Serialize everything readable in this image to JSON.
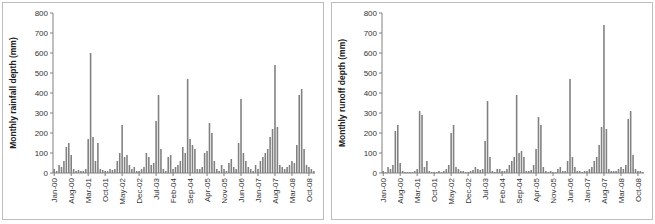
{
  "chart_data": [
    {
      "type": "bar",
      "y_label": "Monthly rainfall depth (mm)",
      "color": "#808080",
      "grid": false,
      "ylim": [
        0,
        800
      ],
      "yticks": [
        0,
        100,
        200,
        300,
        400,
        500,
        600,
        700,
        800
      ],
      "categories": [
        "Jan-00",
        null,
        null,
        null,
        null,
        null,
        null,
        "Aug-00",
        null,
        null,
        null,
        null,
        null,
        null,
        "Mar-01",
        null,
        null,
        null,
        null,
        null,
        null,
        "Oct-01",
        null,
        null,
        null,
        null,
        null,
        null,
        "May-02",
        null,
        null,
        null,
        null,
        null,
        null,
        "Dec-02",
        null,
        null,
        null,
        null,
        null,
        null,
        "Jul-03",
        null,
        null,
        null,
        null,
        null,
        null,
        "Feb-04",
        null,
        null,
        null,
        null,
        null,
        null,
        "Sep-04",
        null,
        null,
        null,
        null,
        null,
        null,
        "Apr-05",
        null,
        null,
        null,
        null,
        null,
        null,
        "Nov-05",
        null,
        null,
        null,
        null,
        null,
        null,
        "Jun-06",
        null,
        null,
        null,
        null,
        null,
        null,
        "Jan-07",
        null,
        null,
        null,
        null,
        null,
        null,
        "Aug-07",
        null,
        null,
        null,
        null,
        null,
        null,
        "Mar-08",
        null,
        null,
        null,
        null,
        null,
        null,
        "Oct-08",
        null,
        null
      ],
      "values": [
        20,
        10,
        40,
        30,
        60,
        130,
        150,
        90,
        20,
        10,
        15,
        10,
        10,
        20,
        170,
        600,
        180,
        60,
        150,
        20,
        15,
        10,
        10,
        20,
        15,
        20,
        60,
        100,
        240,
        80,
        90,
        40,
        20,
        30,
        10,
        10,
        20,
        30,
        100,
        80,
        40,
        50,
        260,
        390,
        120,
        20,
        10,
        80,
        90,
        20,
        30,
        40,
        60,
        130,
        100,
        470,
        170,
        140,
        120,
        20,
        20,
        30,
        100,
        110,
        250,
        200,
        60,
        20,
        10,
        40,
        20,
        10,
        50,
        70,
        30,
        20,
        150,
        370,
        100,
        60,
        30,
        20,
        10,
        40,
        20,
        60,
        80,
        100,
        120,
        180,
        220,
        540,
        230,
        40,
        30,
        20,
        30,
        40,
        60,
        50,
        140,
        390,
        420,
        120,
        40,
        30,
        20,
        10
      ]
    },
    {
      "type": "bar",
      "y_label": "Monthly runoff depth (mm)",
      "color": "#808080",
      "grid": false,
      "ylim": [
        0,
        800
      ],
      "yticks": [
        0,
        100,
        200,
        300,
        400,
        500,
        600,
        700,
        800
      ],
      "categories": [
        "Jan-00",
        null,
        null,
        null,
        null,
        null,
        null,
        "Aug-00",
        null,
        null,
        null,
        null,
        null,
        null,
        "Mar-01",
        null,
        null,
        null,
        null,
        null,
        null,
        "Oct-01",
        null,
        null,
        null,
        null,
        null,
        null,
        "May-02",
        null,
        null,
        null,
        null,
        null,
        null,
        "Dec-02",
        null,
        null,
        null,
        null,
        null,
        null,
        "Jul-03",
        null,
        null,
        null,
        null,
        null,
        null,
        "Feb-04",
        null,
        null,
        null,
        null,
        null,
        null,
        "Sep-04",
        null,
        null,
        null,
        null,
        null,
        null,
        "Apr-05",
        null,
        null,
        null,
        null,
        null,
        null,
        "Nov-05",
        null,
        null,
        null,
        null,
        null,
        null,
        "Jun-06",
        null,
        null,
        null,
        null,
        null,
        null,
        "Jan-07",
        null,
        null,
        null,
        null,
        null,
        null,
        "Aug-07",
        null,
        null,
        null,
        null,
        null,
        null,
        "Mar-08",
        null,
        null,
        null,
        null,
        null,
        null,
        "Oct-08",
        null,
        null
      ],
      "values": [
        10,
        5,
        30,
        20,
        40,
        210,
        240,
        50,
        10,
        5,
        5,
        5,
        5,
        10,
        20,
        310,
        290,
        30,
        60,
        10,
        5,
        5,
        5,
        10,
        5,
        10,
        20,
        40,
        200,
        240,
        30,
        20,
        10,
        10,
        5,
        5,
        10,
        15,
        30,
        20,
        15,
        20,
        160,
        360,
        80,
        10,
        5,
        20,
        20,
        10,
        10,
        20,
        40,
        60,
        80,
        390,
        100,
        110,
        80,
        10,
        10,
        15,
        40,
        120,
        280,
        240,
        30,
        10,
        5,
        10,
        5,
        5,
        20,
        30,
        10,
        10,
        60,
        470,
        80,
        30,
        10,
        10,
        5,
        10,
        10,
        20,
        30,
        60,
        80,
        140,
        230,
        740,
        220,
        20,
        10,
        10,
        10,
        20,
        30,
        20,
        40,
        270,
        310,
        90,
        20,
        10,
        10,
        5
      ]
    }
  ]
}
